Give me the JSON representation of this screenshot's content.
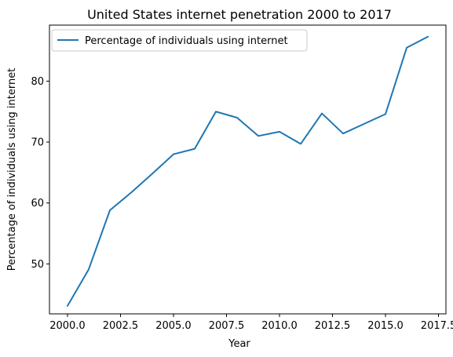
{
  "chart_data": {
    "type": "line",
    "title": "United States internet penetration 2000 to 2017",
    "xlabel": "Year",
    "ylabel": "Percentage of individuals using internet",
    "xlim": [
      1999.15,
      2017.85
    ],
    "ylim": [
      41.8,
      89.2
    ],
    "x_ticks": [
      2000.0,
      2002.5,
      2005.0,
      2007.5,
      2010.0,
      2012.5,
      2015.0,
      2017.5
    ],
    "x_tick_labels": [
      "2000.0",
      "2002.5",
      "2005.0",
      "2007.5",
      "2010.0",
      "2012.5",
      "2015.0",
      "2017.5"
    ],
    "y_ticks": [
      50,
      60,
      70,
      80
    ],
    "y_tick_labels": [
      "50",
      "60",
      "70",
      "80"
    ],
    "grid": false,
    "legend_position": "upper-left",
    "series": [
      {
        "name": "Percentage of individuals using internet",
        "color": "#1f77b4",
        "x": [
          2000,
          2001,
          2002,
          2003,
          2004,
          2005,
          2006,
          2007,
          2008,
          2009,
          2010,
          2011,
          2012,
          2013,
          2014,
          2015,
          2016,
          2017
        ],
        "y": [
          43.1,
          49.1,
          58.8,
          61.7,
          64.8,
          68.0,
          68.9,
          75.0,
          74.0,
          71.0,
          71.7,
          69.7,
          74.7,
          71.4,
          73.0,
          74.6,
          85.5,
          87.3
        ]
      }
    ]
  }
}
